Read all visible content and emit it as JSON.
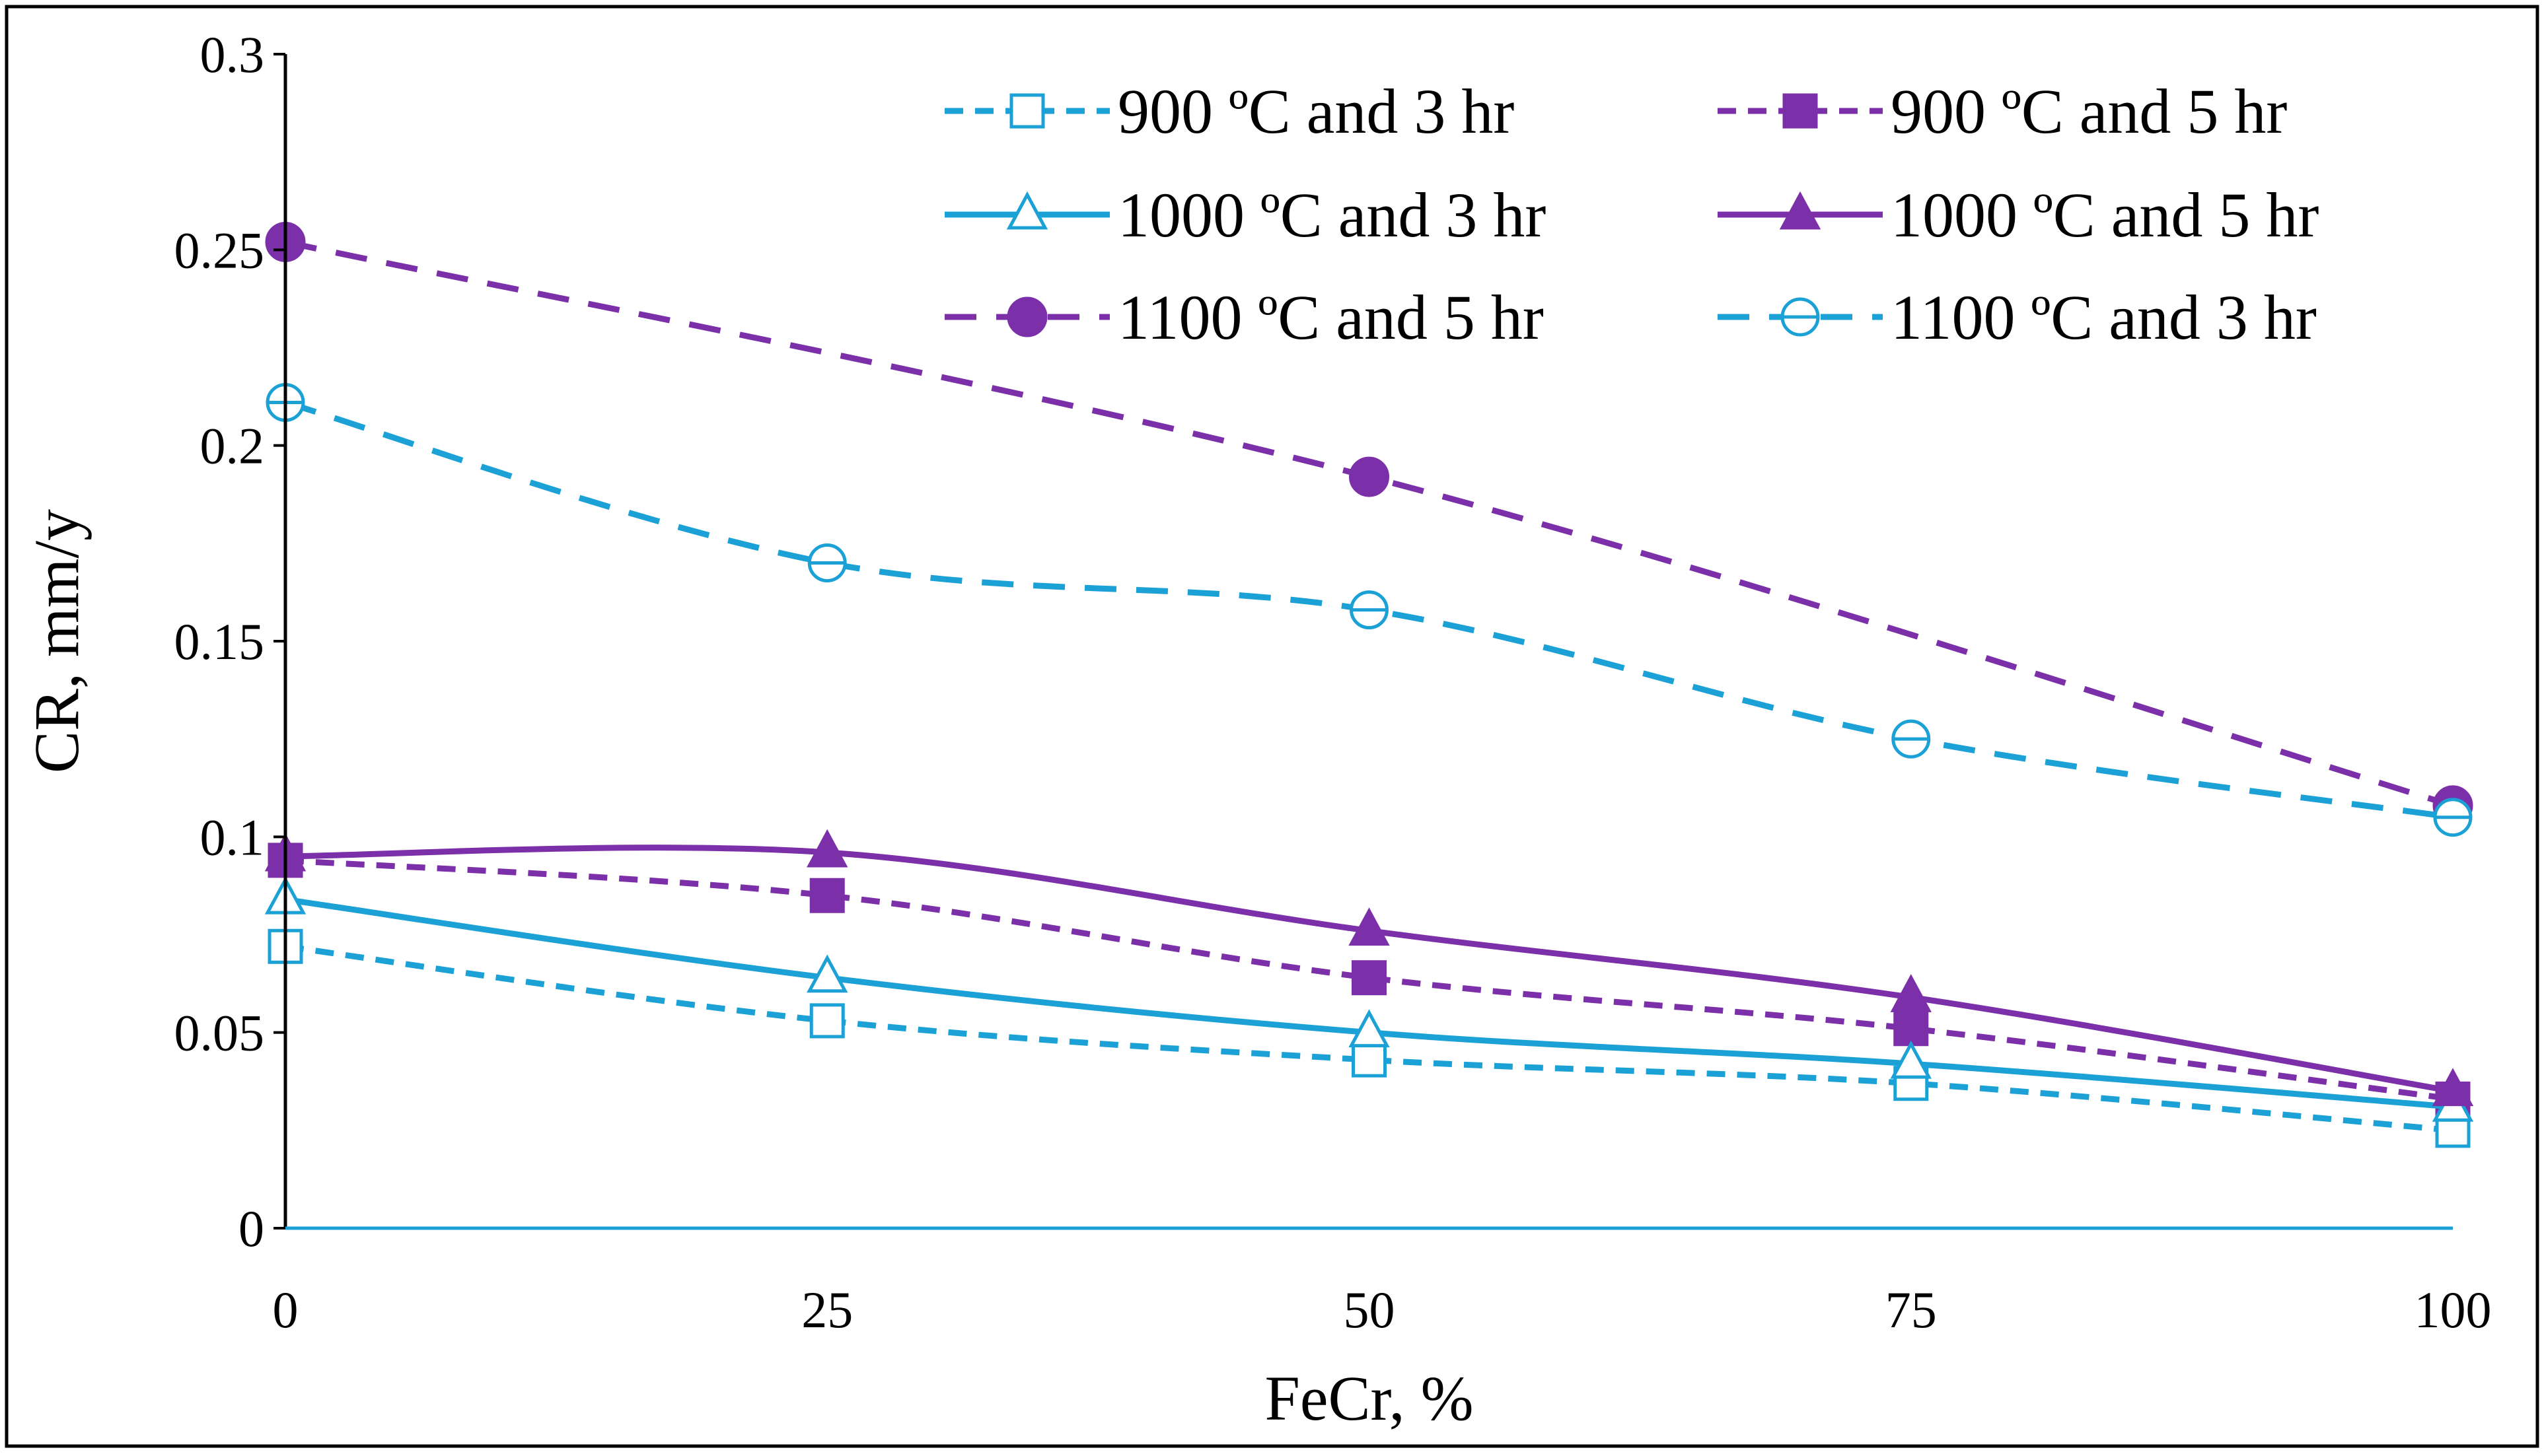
{
  "colors": {
    "blue": "#1BA1D6",
    "purple": "#7B2FA8",
    "axis": "#000000",
    "frame": "#000000"
  },
  "chart_data": {
    "type": "line",
    "title": "",
    "xlabel": "FeCr, %",
    "ylabel": "CR, mm/y",
    "x": [
      0,
      25,
      50,
      75,
      100
    ],
    "xlim": [
      0,
      100
    ],
    "ylim": [
      0,
      0.3
    ],
    "xticks": [
      "0",
      "25",
      "50",
      "75",
      "100"
    ],
    "yticks": [
      "0",
      "0.05",
      "0.1",
      "0.15",
      "0.2",
      "0.25",
      "0.3"
    ],
    "legend_position": "top-right",
    "grid": false,
    "series": [
      {
        "name": "900 ºC and 3 hr",
        "color": "blue",
        "dash": "short-dash",
        "marker": "open-square",
        "x": [
          0,
          25,
          50,
          75,
          100
        ],
        "values": [
          0.072,
          0.053,
          0.043,
          0.037,
          0.025
        ]
      },
      {
        "name": "900 ºC and 5 hr",
        "color": "purple",
        "dash": "short-dash",
        "marker": "filled-square",
        "x": [
          0,
          25,
          50,
          75,
          100
        ],
        "values": [
          0.094,
          0.085,
          0.064,
          0.051,
          0.033
        ]
      },
      {
        "name": "1000 ºC and 3 hr",
        "color": "blue",
        "dash": "solid",
        "marker": "open-triangle",
        "x": [
          0,
          25,
          50,
          75,
          100
        ],
        "values": [
          0.084,
          0.064,
          0.05,
          0.042,
          0.031
        ]
      },
      {
        "name": "1000 ºC and 5 hr",
        "color": "purple",
        "dash": "solid",
        "marker": "filled-triangle",
        "x": [
          0,
          25,
          50,
          75,
          100
        ],
        "values": [
          0.095,
          0.096,
          0.076,
          0.059,
          0.035
        ]
      },
      {
        "name": "1100 ºC and 5 hr",
        "color": "purple",
        "dash": "long-dash",
        "marker": "filled-circle",
        "x": [
          0,
          50,
          100
        ],
        "values": [
          0.252,
          0.192,
          0.108
        ]
      },
      {
        "name": "1100 ºC and 3 hr",
        "color": "blue",
        "dash": "long-dash",
        "marker": "open-circle-bar",
        "x": [
          0,
          25,
          50,
          75,
          100
        ],
        "values": [
          0.211,
          0.17,
          0.158,
          0.125,
          0.105
        ]
      }
    ]
  }
}
